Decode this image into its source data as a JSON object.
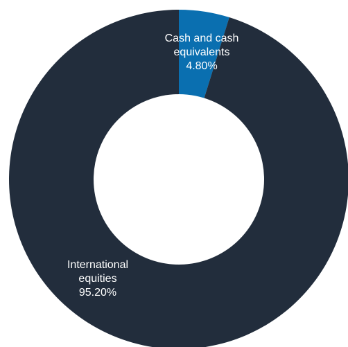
{
  "chart_data": {
    "type": "pie",
    "donut": true,
    "title": "",
    "slices": [
      {
        "label_lines": [
          "Cash and cash",
          "equivalents"
        ],
        "value": 4.8,
        "value_label": "4.80%",
        "color": "#0a6fb0"
      },
      {
        "label_lines": [
          "International",
          "equities"
        ],
        "value": 95.2,
        "value_label": "95.20%",
        "color": "#222d3c"
      }
    ]
  }
}
